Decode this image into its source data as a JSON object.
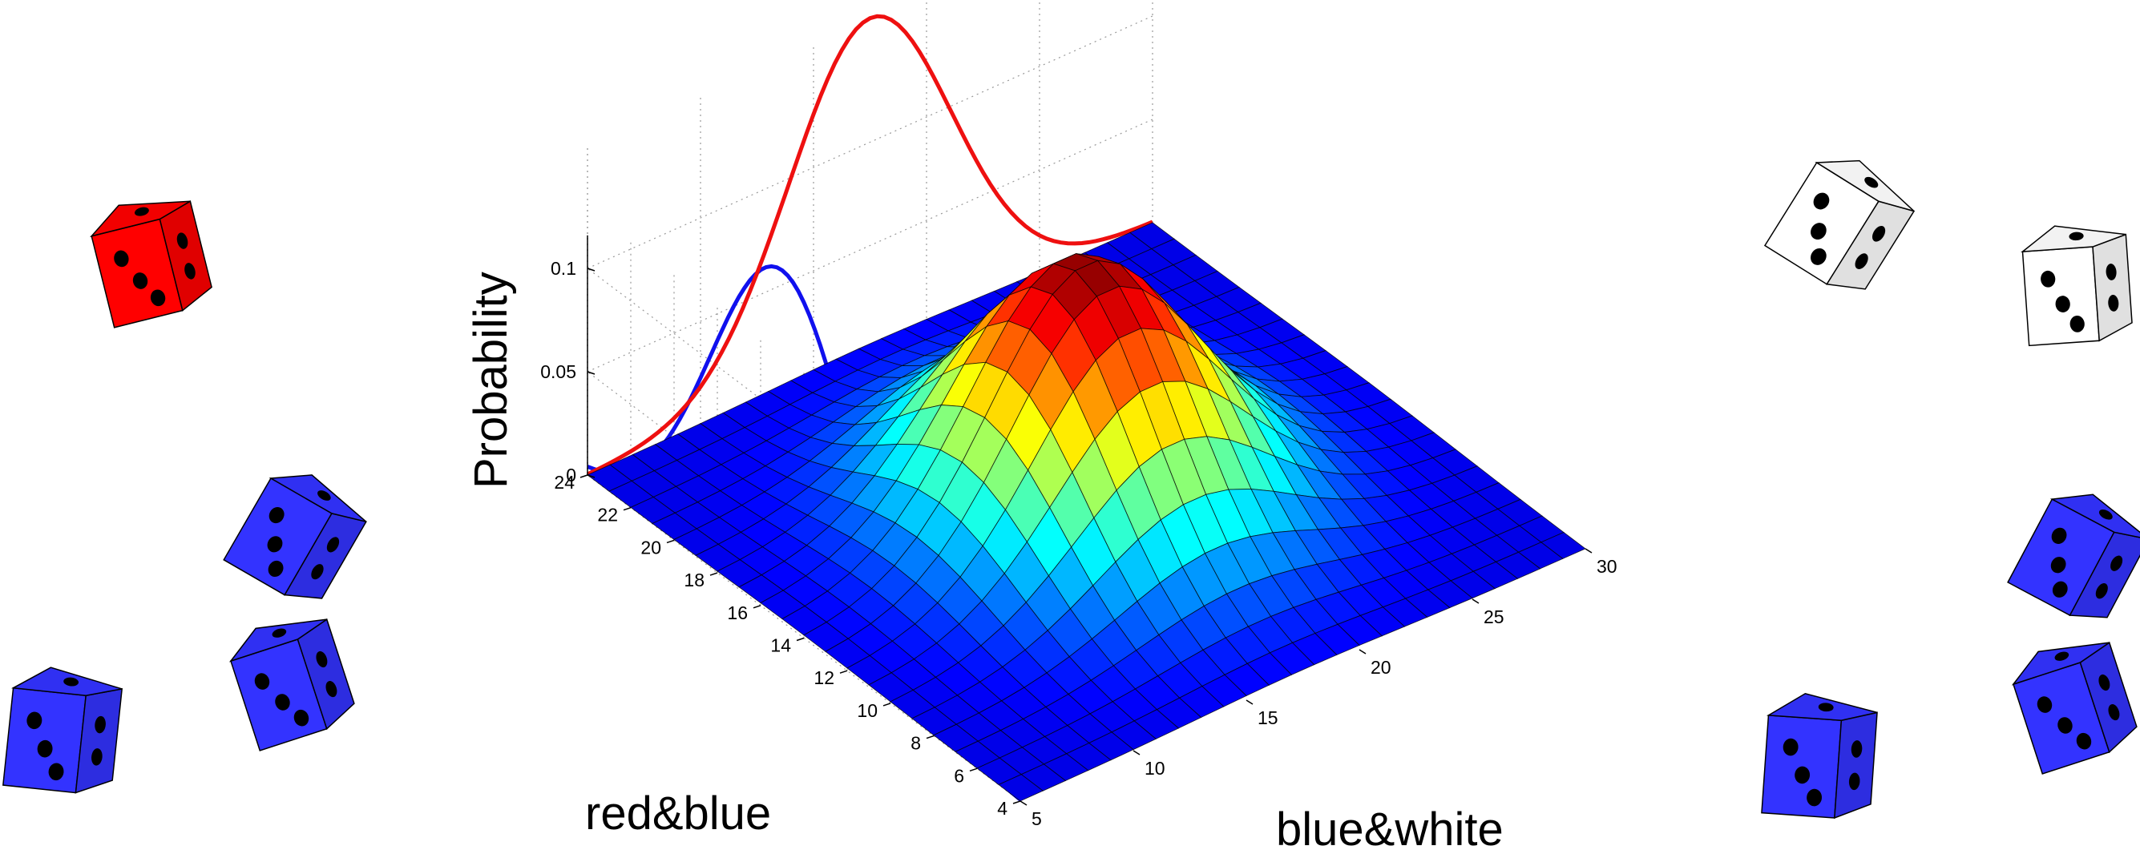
{
  "chart_data": {
    "type": "surface",
    "zlabel": "Probability",
    "ylabel": "red&blue",
    "xlabel": "blue&white",
    "x_axis": {
      "range": [
        5,
        30
      ],
      "ticks": [
        "5",
        "10",
        "15",
        "20",
        "25",
        "30"
      ]
    },
    "y_axis": {
      "range": [
        4,
        24
      ],
      "ticks": [
        "4",
        "6",
        "8",
        "10",
        "12",
        "14",
        "16",
        "18",
        "20",
        "22",
        "24"
      ]
    },
    "z_axis": {
      "range": [
        0,
        0.12
      ],
      "ticks": [
        "0",
        "0.05",
        "0.1"
      ]
    },
    "surface_peak": {
      "x": 17.5,
      "y": 14,
      "z": 0.12
    },
    "marginals": [
      {
        "name": "red&blue marginal",
        "color": "#1010ee"
      },
      {
        "name": "blue&white marginal",
        "color": "#ee1010"
      }
    ],
    "grid": true,
    "colormap": "jet"
  },
  "decorations": {
    "dice_colors": {
      "red": "#ff0000",
      "blue": "#3333ff",
      "white": "#ffffff"
    },
    "dice": [
      "red-die-1",
      "blue-die-1",
      "blue-die-2",
      "blue-die-3",
      "white-die-1",
      "white-die-2",
      "blue-die-4",
      "blue-die-5",
      "blue-die-6"
    ]
  }
}
